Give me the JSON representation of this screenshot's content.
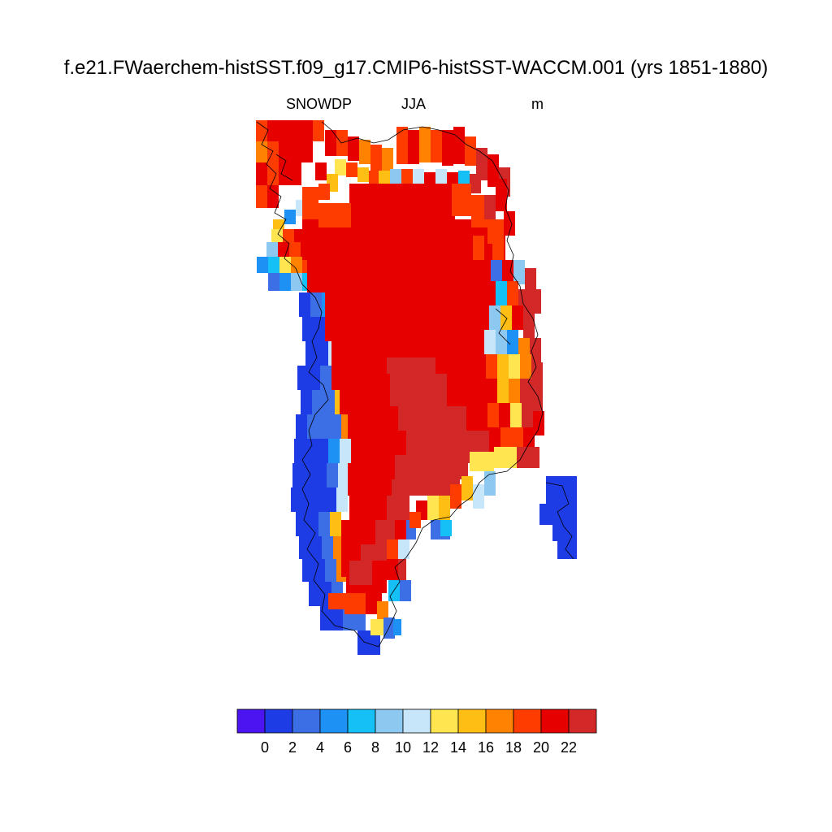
{
  "title": "f.e21.FWaerchem-histSST.f09_g17.CMIP6-histSST-WACCM.001 (yrs 1851-1880)",
  "subtitle_left": "SNOWDP",
  "subtitle_center": "JJA",
  "subtitle_right": "m",
  "colorbar": {
    "colors": [
      "#4b14f0",
      "#1e3ce6",
      "#3c6ee6",
      "#1e91f5",
      "#14c0f5",
      "#8cc8f0",
      "#c8e6fa",
      "#ffe650",
      "#ffbe14",
      "#ff8200",
      "#ff3c00",
      "#e60000",
      "#d22828"
    ],
    "tick_labels": [
      "0",
      "2",
      "4",
      "6",
      "8",
      "10",
      "12",
      "14",
      "16",
      "18",
      "20",
      "22"
    ]
  },
  "map": {
    "region": "Greenland",
    "variable": "SNOWDP",
    "season": "JJA",
    "units": "m"
  }
}
